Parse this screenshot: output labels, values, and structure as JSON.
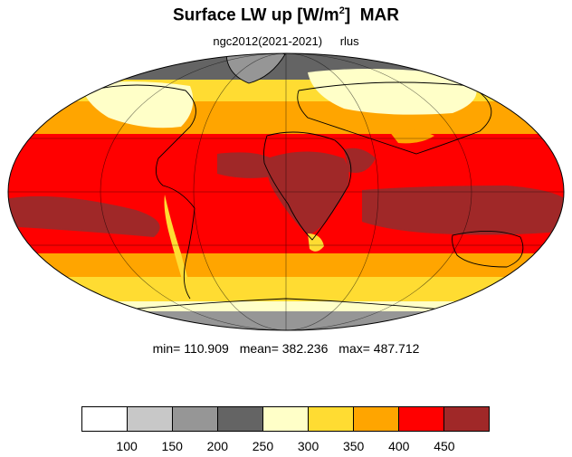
{
  "title": {
    "main": "Surface LW up [W/m",
    "superscript": "2",
    "close": "]",
    "month": "MAR"
  },
  "subtitle": {
    "run": "ngc2012(2021-2021)",
    "variable": "rlus"
  },
  "stats": {
    "min": "min= 110.909",
    "mean": "mean= 382.236",
    "max": "max= 487.712"
  },
  "colorbar": {
    "colors": [
      "#ffffff",
      "#c8c8c8",
      "#969696",
      "#646464",
      "#ffffc8",
      "#ffdc32",
      "#ffa500",
      "#ff0000",
      "#a02828"
    ],
    "labels": [
      "100",
      "150",
      "200",
      "250",
      "300",
      "350",
      "400",
      "450"
    ]
  }
}
